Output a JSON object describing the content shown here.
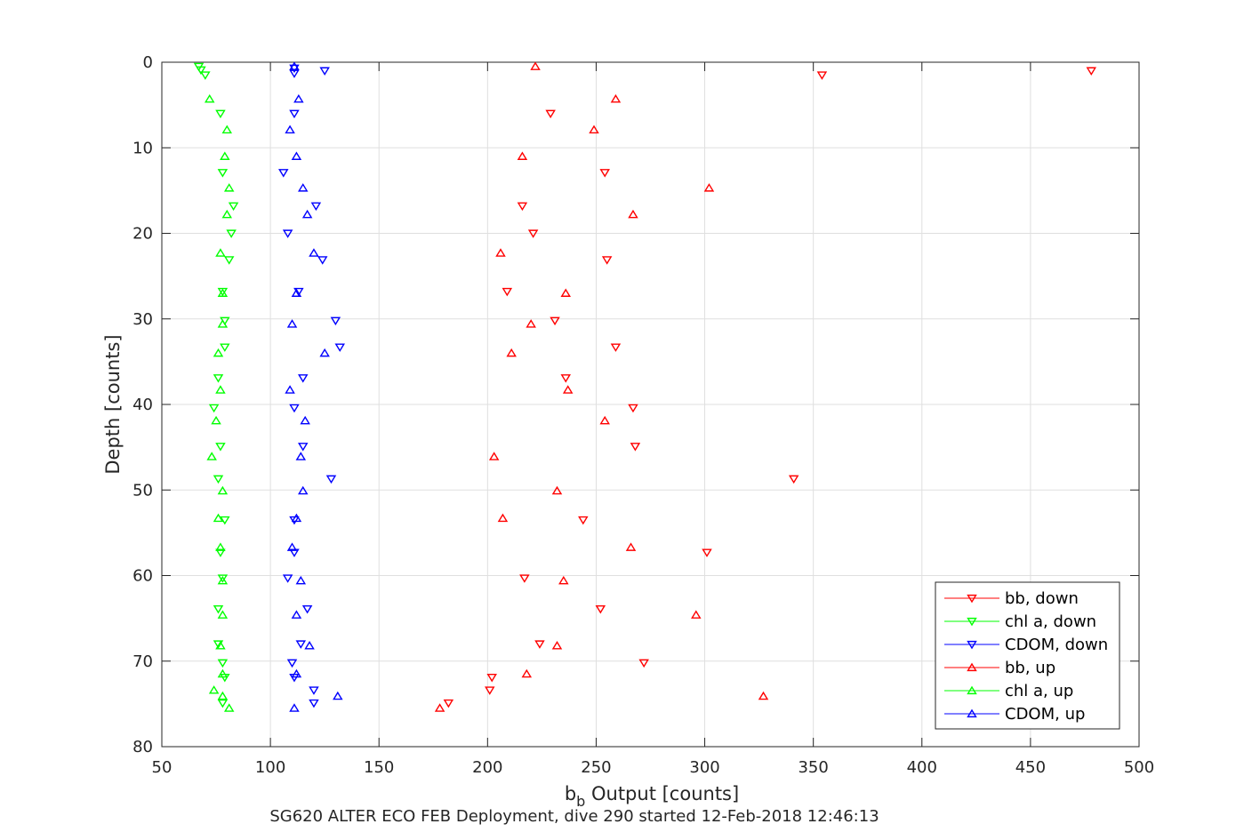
{
  "chart_data": {
    "type": "scatter",
    "title": "SG620 ALTER ECO FEB Deployment, dive 290 started 12-Feb-2018 12:46:13",
    "xlabel": {
      "main": "b",
      "sub": "b",
      "rest": " Output [counts]"
    },
    "ylabel": "Depth [counts]",
    "xlim": [
      50,
      500
    ],
    "ylim": [
      0,
      80
    ],
    "y_reversed": true,
    "grid": true,
    "legend_placement": "bottom-right",
    "x_ticks": [
      "50",
      "100",
      "150",
      "200",
      "250",
      "300",
      "350",
      "400",
      "450",
      "500"
    ],
    "y_ticks": [
      "0",
      "10",
      "20",
      "30",
      "40",
      "50",
      "60",
      "70",
      "80"
    ],
    "series": [
      {
        "name": "bb, down",
        "color": "#ff0000",
        "marker": "triangle-down",
        "points": [
          [
            478,
            1.0
          ],
          [
            354,
            1.5
          ],
          [
            229,
            6.0
          ],
          [
            254,
            12.9
          ],
          [
            216,
            16.8
          ],
          [
            221,
            20.0
          ],
          [
            255,
            23.1
          ],
          [
            209,
            26.8
          ],
          [
            231,
            30.2
          ],
          [
            259,
            33.3
          ],
          [
            236,
            36.9
          ],
          [
            267,
            40.4
          ],
          [
            268,
            44.9
          ],
          [
            341,
            48.7
          ],
          [
            244,
            53.5
          ],
          [
            301,
            57.3
          ],
          [
            217,
            60.3
          ],
          [
            252,
            63.9
          ],
          [
            224,
            68.0
          ],
          [
            272,
            70.2
          ],
          [
            202,
            71.9
          ],
          [
            201,
            73.4
          ],
          [
            182,
            74.9
          ]
        ]
      },
      {
        "name": "chl a, down",
        "color": "#00ff00",
        "marker": "triangle-down",
        "points": [
          [
            67,
            0.5
          ],
          [
            68,
            0.9
          ],
          [
            70,
            1.5
          ],
          [
            77,
            6.0
          ],
          [
            78,
            12.9
          ],
          [
            83,
            16.8
          ],
          [
            82,
            20.0
          ],
          [
            81,
            23.1
          ],
          [
            78,
            26.8
          ],
          [
            79,
            30.2
          ],
          [
            79,
            33.3
          ],
          [
            76,
            36.9
          ],
          [
            74,
            40.4
          ],
          [
            77,
            44.9
          ],
          [
            76,
            48.7
          ],
          [
            79,
            53.5
          ],
          [
            77,
            57.3
          ],
          [
            78,
            60.3
          ],
          [
            76,
            63.9
          ],
          [
            76,
            68.0
          ],
          [
            78,
            70.2
          ],
          [
            79,
            71.9
          ],
          [
            78,
            74.9
          ]
        ]
      },
      {
        "name": "CDOM, down",
        "color": "#0000ff",
        "marker": "triangle-down",
        "points": [
          [
            111,
            0.7
          ],
          [
            111,
            1.3
          ],
          [
            125,
            1.0
          ],
          [
            111,
            6.0
          ],
          [
            106,
            12.9
          ],
          [
            121,
            16.8
          ],
          [
            108,
            20.0
          ],
          [
            124,
            23.1
          ],
          [
            113,
            26.8
          ],
          [
            130,
            30.2
          ],
          [
            132,
            33.3
          ],
          [
            115,
            36.9
          ],
          [
            111,
            40.4
          ],
          [
            115,
            44.9
          ],
          [
            128,
            48.7
          ],
          [
            111,
            53.5
          ],
          [
            111,
            57.3
          ],
          [
            108,
            60.3
          ],
          [
            117,
            63.9
          ],
          [
            114,
            68.0
          ],
          [
            110,
            70.2
          ],
          [
            111,
            71.9
          ],
          [
            120,
            73.4
          ],
          [
            120,
            74.9
          ]
        ]
      },
      {
        "name": "bb, up",
        "color": "#ff0000",
        "marker": "triangle-up",
        "points": [
          [
            222,
            0.5
          ],
          [
            259,
            4.3
          ],
          [
            249,
            7.9
          ],
          [
            216,
            11.0
          ],
          [
            302,
            14.7
          ],
          [
            267,
            17.8
          ],
          [
            206,
            22.3
          ],
          [
            236,
            27.0
          ],
          [
            220,
            30.6
          ],
          [
            211,
            34.0
          ],
          [
            237,
            38.3
          ],
          [
            254,
            41.9
          ],
          [
            203,
            46.1
          ],
          [
            232,
            50.1
          ],
          [
            207,
            53.3
          ],
          [
            266,
            56.7
          ],
          [
            235,
            60.6
          ],
          [
            296,
            64.6
          ],
          [
            232,
            68.2
          ],
          [
            218,
            71.5
          ],
          [
            327,
            74.1
          ],
          [
            178,
            75.5
          ]
        ]
      },
      {
        "name": "chl a, up",
        "color": "#00ff00",
        "marker": "triangle-up",
        "points": [
          [
            72,
            4.3
          ],
          [
            80,
            7.9
          ],
          [
            79,
            11.0
          ],
          [
            81,
            14.7
          ],
          [
            80,
            17.8
          ],
          [
            77,
            22.3
          ],
          [
            78,
            27.0
          ],
          [
            78,
            30.6
          ],
          [
            76,
            34.0
          ],
          [
            77,
            38.3
          ],
          [
            75,
            41.9
          ],
          [
            73,
            46.1
          ],
          [
            78,
            50.1
          ],
          [
            76,
            53.3
          ],
          [
            77,
            56.7
          ],
          [
            78,
            60.6
          ],
          [
            78,
            64.6
          ],
          [
            77,
            68.2
          ],
          [
            78,
            71.5
          ],
          [
            74,
            73.4
          ],
          [
            78,
            74.1
          ],
          [
            81,
            75.5
          ]
        ]
      },
      {
        "name": "CDOM, up",
        "color": "#0000ff",
        "marker": "triangle-up",
        "points": [
          [
            111,
            0.5
          ],
          [
            113,
            4.3
          ],
          [
            109,
            7.9
          ],
          [
            112,
            11.0
          ],
          [
            115,
            14.7
          ],
          [
            117,
            17.8
          ],
          [
            120,
            22.3
          ],
          [
            112,
            27.0
          ],
          [
            110,
            30.6
          ],
          [
            125,
            34.0
          ],
          [
            109,
            38.3
          ],
          [
            116,
            41.9
          ],
          [
            114,
            46.1
          ],
          [
            115,
            50.1
          ],
          [
            112,
            53.3
          ],
          [
            110,
            56.7
          ],
          [
            114,
            60.6
          ],
          [
            112,
            64.6
          ],
          [
            118,
            68.2
          ],
          [
            112,
            71.5
          ],
          [
            131,
            74.1
          ],
          [
            111,
            75.5
          ]
        ]
      }
    ]
  }
}
